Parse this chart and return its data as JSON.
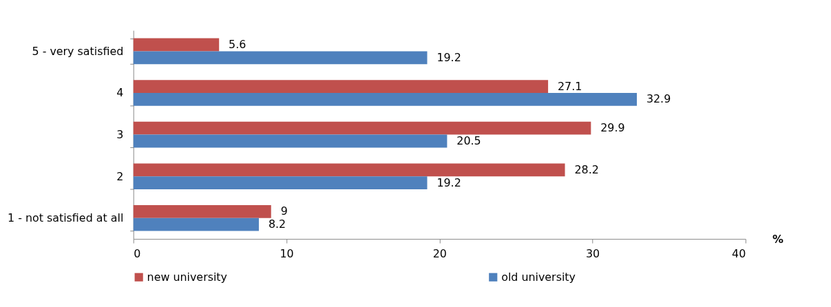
{
  "chart_data": {
    "type": "bar",
    "orientation": "horizontal",
    "xlabel": "%",
    "categories": [
      "5 - very satisfied",
      "4",
      "3",
      "2",
      "1 - not satisfied at all"
    ],
    "series": [
      {
        "name": "new university",
        "color": "#c0504d",
        "values": [
          5.6,
          27.1,
          29.9,
          28.2,
          9
        ]
      },
      {
        "name": "old university",
        "color": "#4f81bd",
        "values": [
          19.2,
          32.9,
          20.5,
          19.2,
          8.2
        ]
      }
    ],
    "xlim": [
      0,
      40
    ],
    "xticks": [
      0,
      10,
      20,
      30,
      40
    ],
    "grid": false,
    "legend": "bottom",
    "data_labels": true
  }
}
